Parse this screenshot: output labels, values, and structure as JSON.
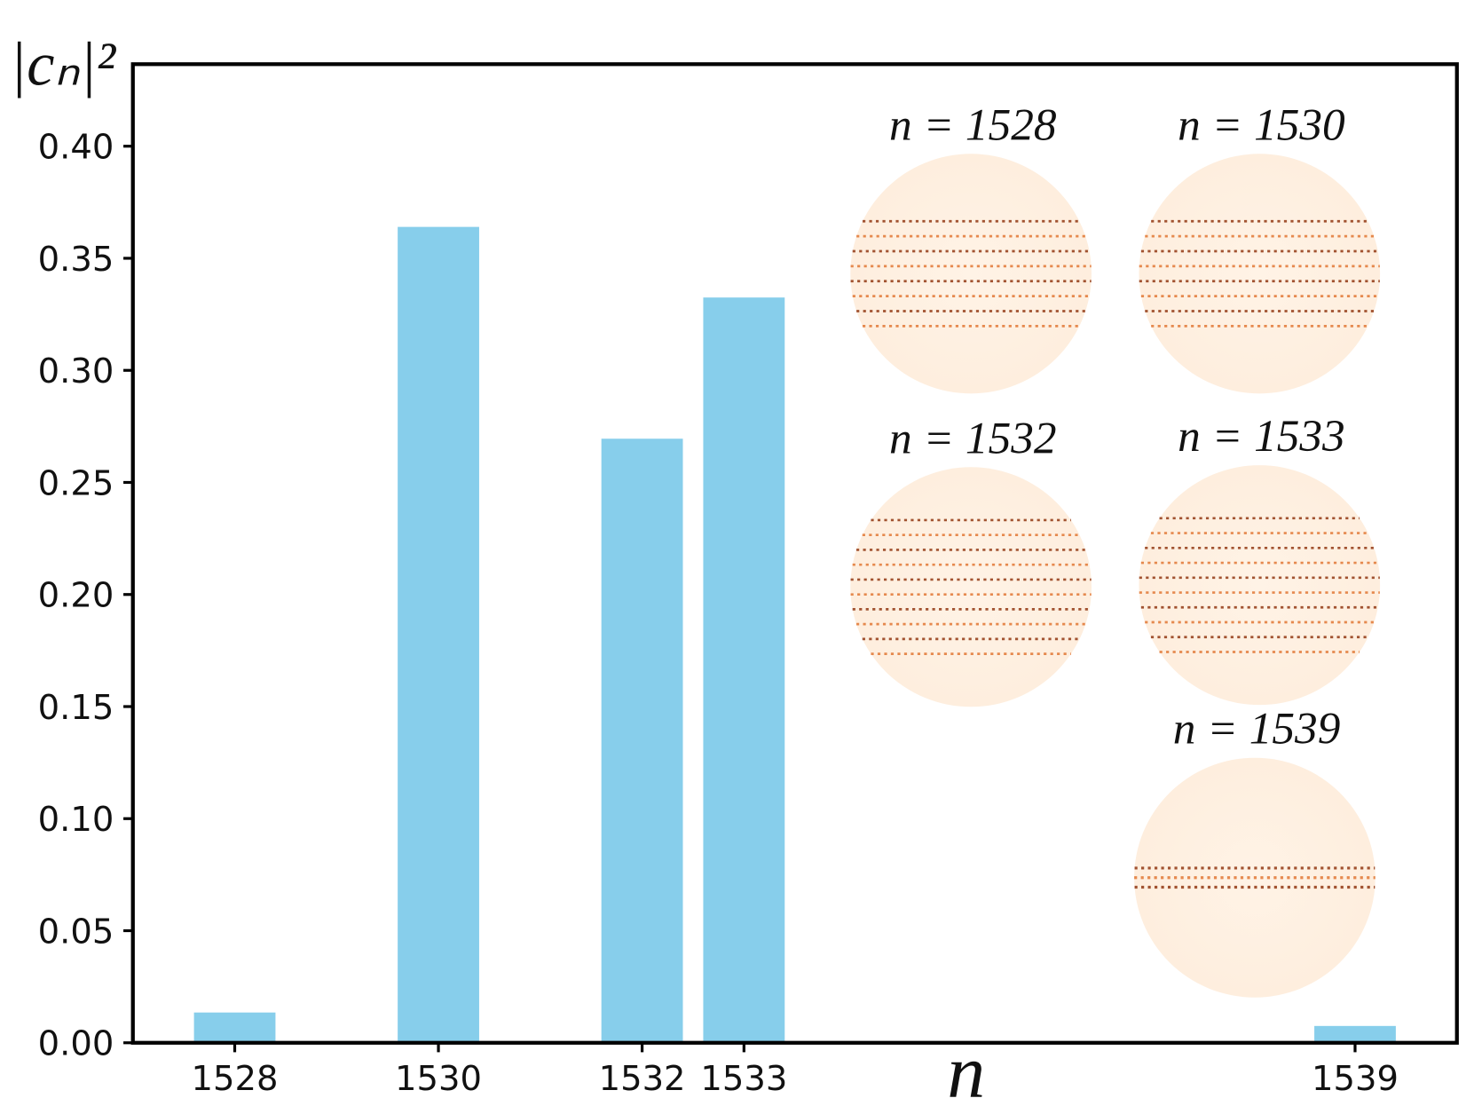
{
  "chart_data": {
    "type": "bar",
    "x": [
      1528,
      1530,
      1532,
      1533,
      1539
    ],
    "values": [
      0.0135,
      0.364,
      0.2695,
      0.3325,
      0.0075
    ],
    "color": "#87ceeb",
    "bar_width": 0.8,
    "xlim": [
      1527,
      1540
    ],
    "xticks": [
      1528,
      1530,
      1532,
      1533,
      1539
    ],
    "ylim": [
      0,
      0.4366
    ],
    "yticks": [
      {
        "value": 0,
        "label": "0.00"
      },
      {
        "value": 0.05,
        "label": "0.05"
      },
      {
        "value": 0.1,
        "label": "0.10"
      },
      {
        "value": 0.15,
        "label": "0.15"
      },
      {
        "value": 0.2,
        "label": "0.20"
      },
      {
        "value": 0.25,
        "label": "0.25"
      },
      {
        "value": 0.3,
        "label": "0.30"
      },
      {
        "value": 0.35,
        "label": "0.35"
      },
      {
        "value": 0.4,
        "label": "0.40"
      }
    ],
    "x_label": "n",
    "y_label": "|cₙ|²",
    "inset_labels": [
      "n = 1528",
      "n = 1530",
      "n = 1532",
      "n = 1533",
      "n = 1539"
    ]
  }
}
